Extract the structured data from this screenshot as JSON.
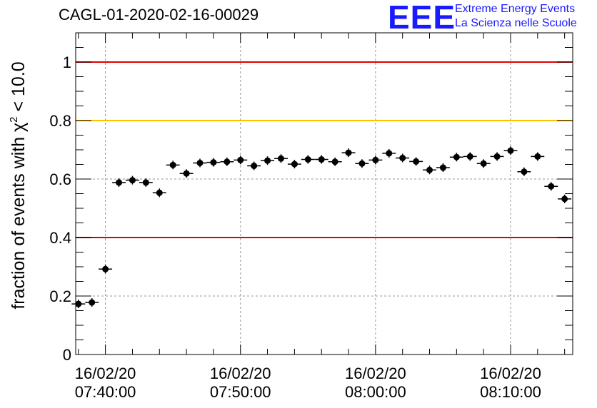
{
  "chart_data": {
    "type": "scatter",
    "title": "CAGL-01-2020-02-16-00029",
    "ylabel_main": "fraction of events with ",
    "ylabel_chi": "χ",
    "ylabel_sup": "2",
    "ylabel_tail": " < 10.0",
    "ylim": [
      0,
      1.1
    ],
    "yticks": [
      "0",
      "0.2",
      "0.4",
      "0.6",
      "0.8",
      "1"
    ],
    "ytick_values": [
      0,
      0.2,
      0.4,
      0.6,
      0.8,
      1.0
    ],
    "xlim_minutes": [
      -2.2,
      34.6
    ],
    "xticks": [
      {
        "minute": 0,
        "line1": "16/02/20",
        "line2": "07:40:00"
      },
      {
        "minute": 10,
        "line1": "16/02/20",
        "line2": "07:50:00"
      },
      {
        "minute": 20,
        "line1": "16/02/20",
        "line2": "08:00:00"
      },
      {
        "minute": 30,
        "line1": "16/02/20",
        "line2": "08:10:00"
      }
    ],
    "grid": true,
    "reference_lines": [
      {
        "y": 1.0,
        "color": "#e00000"
      },
      {
        "y": 0.8,
        "color": "#ffc000"
      },
      {
        "y": 0.4,
        "color": "#e00000"
      }
    ],
    "bin_width_minutes": 1,
    "x_start_minutes": -2,
    "values": [
      0.173,
      0.178,
      0.292,
      0.588,
      0.596,
      0.588,
      0.553,
      0.648,
      0.619,
      0.655,
      0.657,
      0.659,
      0.665,
      0.645,
      0.663,
      0.67,
      0.651,
      0.667,
      0.667,
      0.659,
      0.69,
      0.653,
      0.665,
      0.688,
      0.672,
      0.66,
      0.631,
      0.639,
      0.675,
      0.677,
      0.653,
      0.677,
      0.697,
      0.625,
      0.677,
      0.575,
      0.532
    ]
  },
  "logo": {
    "mark": "EEE",
    "line1": "Extreme Energy Events",
    "line2": "La Scienza nelle Scuole",
    "color": "#1a1aff"
  }
}
